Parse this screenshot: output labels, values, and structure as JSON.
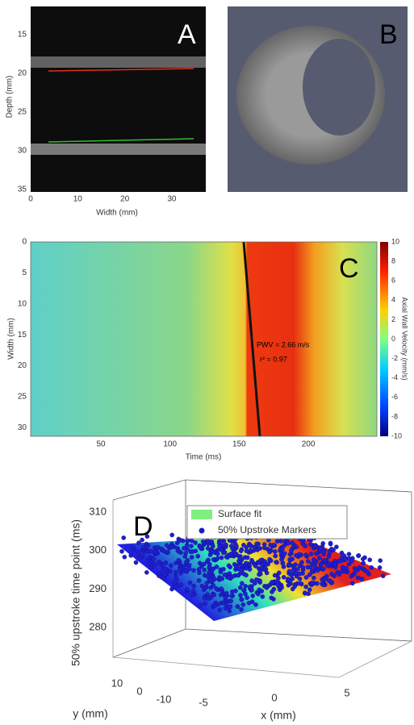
{
  "panels": [
    {
      "letter": "A",
      "x_label": "Width (mm)",
      "y_label": "Depth (mm)",
      "x_ticks": [
        "0",
        "10",
        "20",
        "30"
      ],
      "y_ticks": [
        "15",
        "20",
        "25",
        "30",
        "35"
      ]
    },
    {
      "letter": "B"
    },
    {
      "letter": "C",
      "x_label": "Time (ms)",
      "y_label": "Width (mm)",
      "x_ticks": [
        "50",
        "100",
        "150",
        "200"
      ],
      "y_ticks": [
        "0",
        "5",
        "10",
        "15",
        "20",
        "25",
        "30"
      ],
      "colorbar_label": "Axial Wall Velocity (mm/s)",
      "colorbar_ticks": [
        "10",
        "8",
        "6",
        "4",
        "2",
        "0",
        "-2",
        "-4",
        "-6",
        "-8",
        "-10"
      ],
      "annotation": [
        "PWV = 2.66 m/s",
        "r² = 0.97"
      ]
    },
    {
      "letter": "D",
      "z_label": "50% upstroke time point (ms)",
      "z_ticks": [
        "310",
        "300",
        "290",
        "280"
      ],
      "y_label": "y (mm)",
      "y_ticks": [
        "10",
        "0",
        "-10"
      ],
      "x_label": "x (mm)",
      "x_ticks": [
        "-5",
        "0",
        "5"
      ],
      "legend": [
        "Surface fit",
        "50% Upstroke Markers"
      ]
    }
  ]
}
